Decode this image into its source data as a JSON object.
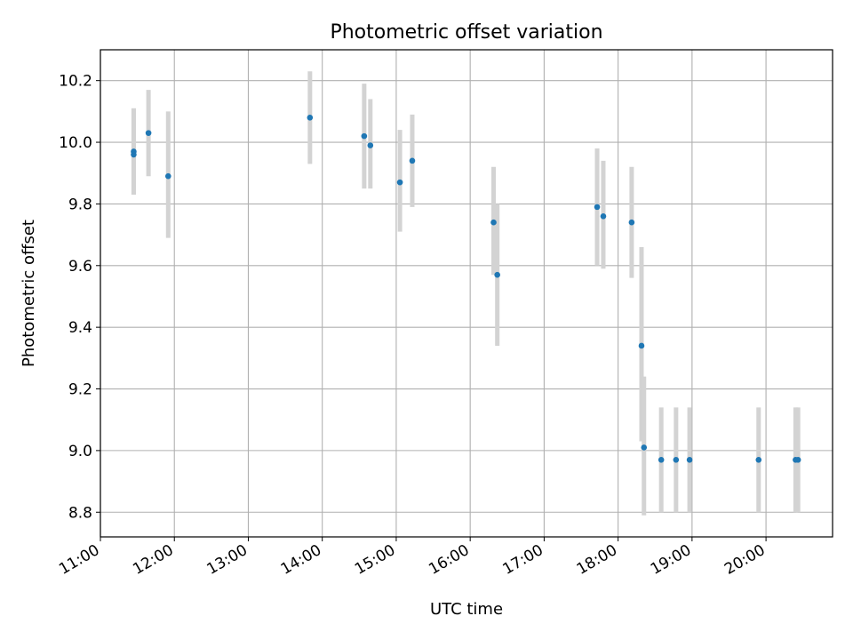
{
  "chart_data": {
    "type": "scatter",
    "title": "Photometric offset variation",
    "xlabel": "UTC time",
    "ylabel": "Photometric offset",
    "x_ticks": [
      "11:00",
      "12:00",
      "13:00",
      "14:00",
      "15:00",
      "16:00",
      "17:00",
      "18:00",
      "19:00",
      "20:00"
    ],
    "y_ticks": [
      "8.8",
      "9.0",
      "9.2",
      "9.4",
      "9.6",
      "9.8",
      "10.0",
      "10.2"
    ],
    "xlim": [
      "11:00",
      "20:54"
    ],
    "ylim": [
      8.72,
      10.3
    ],
    "grid": true,
    "point_color": "#1f77b4",
    "errorbar_color": "#d3d3d3",
    "points": [
      {
        "x": "11:27",
        "y": 9.97,
        "err_low": 9.83,
        "err_high": 10.11
      },
      {
        "x": "11:27",
        "y": 9.96,
        "err_low": 9.83,
        "err_high": 10.11
      },
      {
        "x": "11:39",
        "y": 10.03,
        "err_low": 9.89,
        "err_high": 10.17
      },
      {
        "x": "11:55",
        "y": 9.89,
        "err_low": 9.69,
        "err_high": 10.1
      },
      {
        "x": "13:50",
        "y": 10.08,
        "err_low": 9.93,
        "err_high": 10.23
      },
      {
        "x": "14:34",
        "y": 10.02,
        "err_low": 9.85,
        "err_high": 10.19
      },
      {
        "x": "14:39",
        "y": 9.99,
        "err_low": 9.85,
        "err_high": 10.14
      },
      {
        "x": "15:03",
        "y": 9.87,
        "err_low": 9.71,
        "err_high": 10.04
      },
      {
        "x": "15:13",
        "y": 9.94,
        "err_low": 9.79,
        "err_high": 10.09
      },
      {
        "x": "16:19",
        "y": 9.74,
        "err_low": 9.57,
        "err_high": 9.92
      },
      {
        "x": "16:22",
        "y": 9.57,
        "err_low": 9.34,
        "err_high": 9.8
      },
      {
        "x": "17:43",
        "y": 9.79,
        "err_low": 9.6,
        "err_high": 9.98
      },
      {
        "x": "17:48",
        "y": 9.76,
        "err_low": 9.59,
        "err_high": 9.94
      },
      {
        "x": "18:11",
        "y": 9.74,
        "err_low": 9.56,
        "err_high": 9.92
      },
      {
        "x": "18:19",
        "y": 9.34,
        "err_low": 9.03,
        "err_high": 9.66
      },
      {
        "x": "18:21",
        "y": 9.01,
        "err_low": 8.79,
        "err_high": 9.24
      },
      {
        "x": "18:35",
        "y": 8.97,
        "err_low": 8.8,
        "err_high": 9.14
      },
      {
        "x": "18:47",
        "y": 8.97,
        "err_low": 8.8,
        "err_high": 9.14
      },
      {
        "x": "18:58",
        "y": 8.97,
        "err_low": 8.8,
        "err_high": 9.14
      },
      {
        "x": "19:54",
        "y": 8.97,
        "err_low": 8.8,
        "err_high": 9.14
      },
      {
        "x": "20:24",
        "y": 8.97,
        "err_low": 8.8,
        "err_high": 9.14
      },
      {
        "x": "20:26",
        "y": 8.97,
        "err_low": 8.8,
        "err_high": 9.14
      }
    ]
  }
}
